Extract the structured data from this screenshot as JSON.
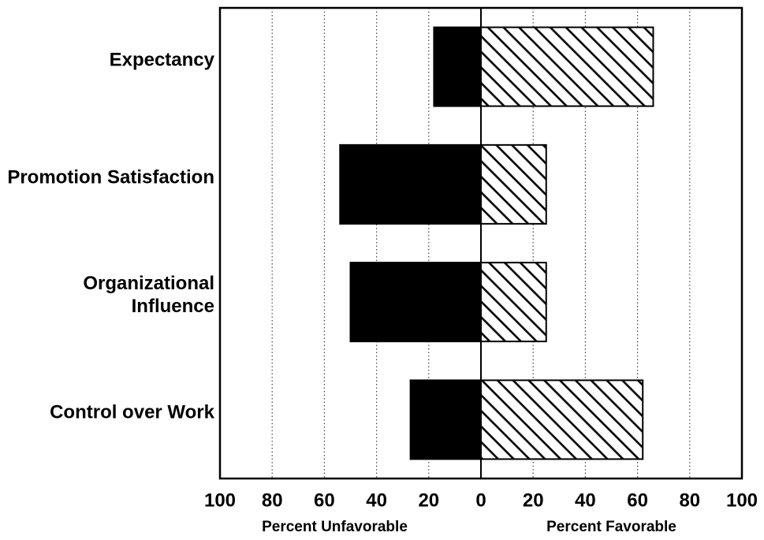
{
  "chart_data": {
    "type": "diverging-bar",
    "categories": [
      "Expectancy",
      "Promotion Satisfaction",
      "Organizational Influence",
      "Control over Work"
    ],
    "series": [
      {
        "name": "Percent Unfavorable",
        "color": "#000000",
        "values": [
          -18,
          -54,
          -50,
          -27
        ]
      },
      {
        "name": "Percent Favorable",
        "color": "#000000",
        "pattern": "hatch",
        "values": [
          66,
          25,
          25,
          62
        ]
      }
    ],
    "xlim": [
      -100,
      100
    ],
    "xticks": [
      {
        "value": -100,
        "label": "100"
      },
      {
        "value": -80,
        "label": "80"
      },
      {
        "value": -60,
        "label": "60"
      },
      {
        "value": -40,
        "label": "40"
      },
      {
        "value": -20,
        "label": "20"
      },
      0,
      20,
      40,
      60,
      80,
      100
    ],
    "grid": true
  }
}
